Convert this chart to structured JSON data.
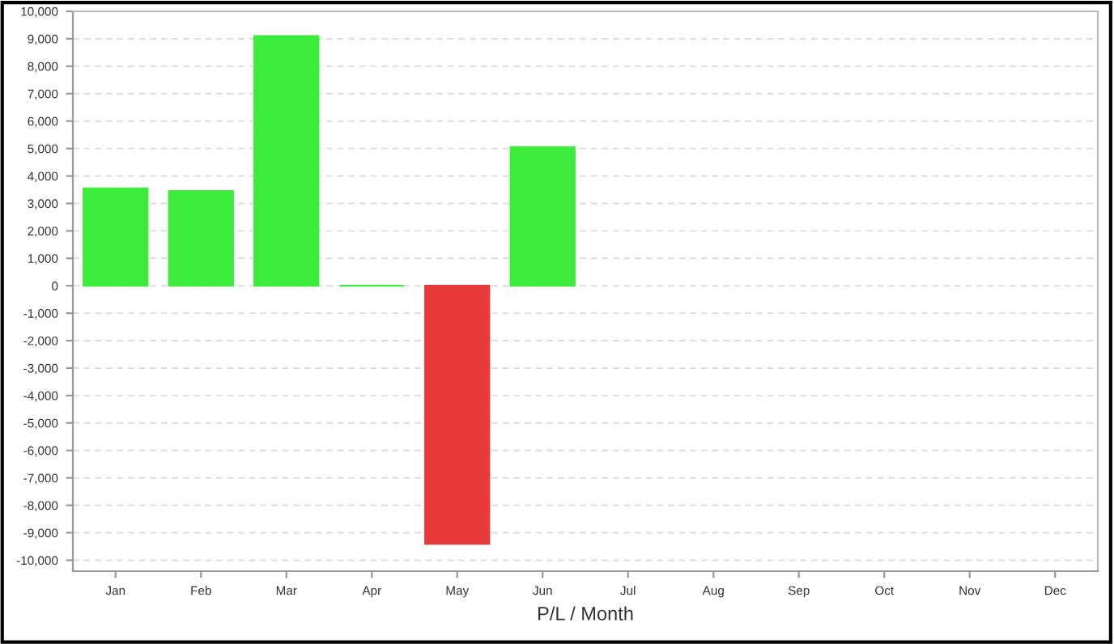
{
  "chart_data": {
    "type": "bar",
    "xlabel": "P/L / Month",
    "categories": [
      "Jan",
      "Feb",
      "Mar",
      "Apr",
      "May",
      "Jun",
      "Jul",
      "Aug",
      "Sep",
      "Oct",
      "Nov",
      "Dec"
    ],
    "values": [
      3550,
      3450,
      9100,
      0,
      -9400,
      5050,
      null,
      null,
      null,
      null,
      null,
      null
    ],
    "colors": [
      "#3deb3d",
      "#3deb3d",
      "#3deb3d",
      "#3deb3d",
      "#e8393b",
      "#3deb3d",
      "#3deb3d",
      "#3deb3d",
      "#3deb3d",
      "#3deb3d",
      "#3deb3d",
      "#3deb3d"
    ],
    "ylim": [
      -10400,
      10000
    ],
    "yticks": [
      {
        "value": -10000,
        "label": "-10,000"
      },
      {
        "value": -9000,
        "label": "-9,000"
      },
      {
        "value": -8000,
        "label": "-8,000"
      },
      {
        "value": -7000,
        "label": "-7,000"
      },
      {
        "value": -6000,
        "label": "-6,000"
      },
      {
        "value": -5000,
        "label": "-5,000"
      },
      {
        "value": -4000,
        "label": "-4,000"
      },
      {
        "value": -3000,
        "label": "-3,000"
      },
      {
        "value": -2000,
        "label": "-2,000"
      },
      {
        "value": -1000,
        "label": "-1,000"
      },
      0,
      {
        "value": 1000,
        "label": "1,000"
      },
      {
        "value": 2000,
        "label": "2,000"
      },
      {
        "value": 3000,
        "label": "3,000"
      },
      {
        "value": 4000,
        "label": "4,000"
      },
      {
        "value": 5000,
        "label": "5,000"
      },
      {
        "value": 6000,
        "label": "6,000"
      },
      {
        "value": 7000,
        "label": "7,000"
      },
      {
        "value": 8000,
        "label": "8,000"
      },
      {
        "value": 9000,
        "label": "9,000"
      },
      {
        "value": 10000,
        "label": "10,000"
      }
    ],
    "grid": "y"
  }
}
